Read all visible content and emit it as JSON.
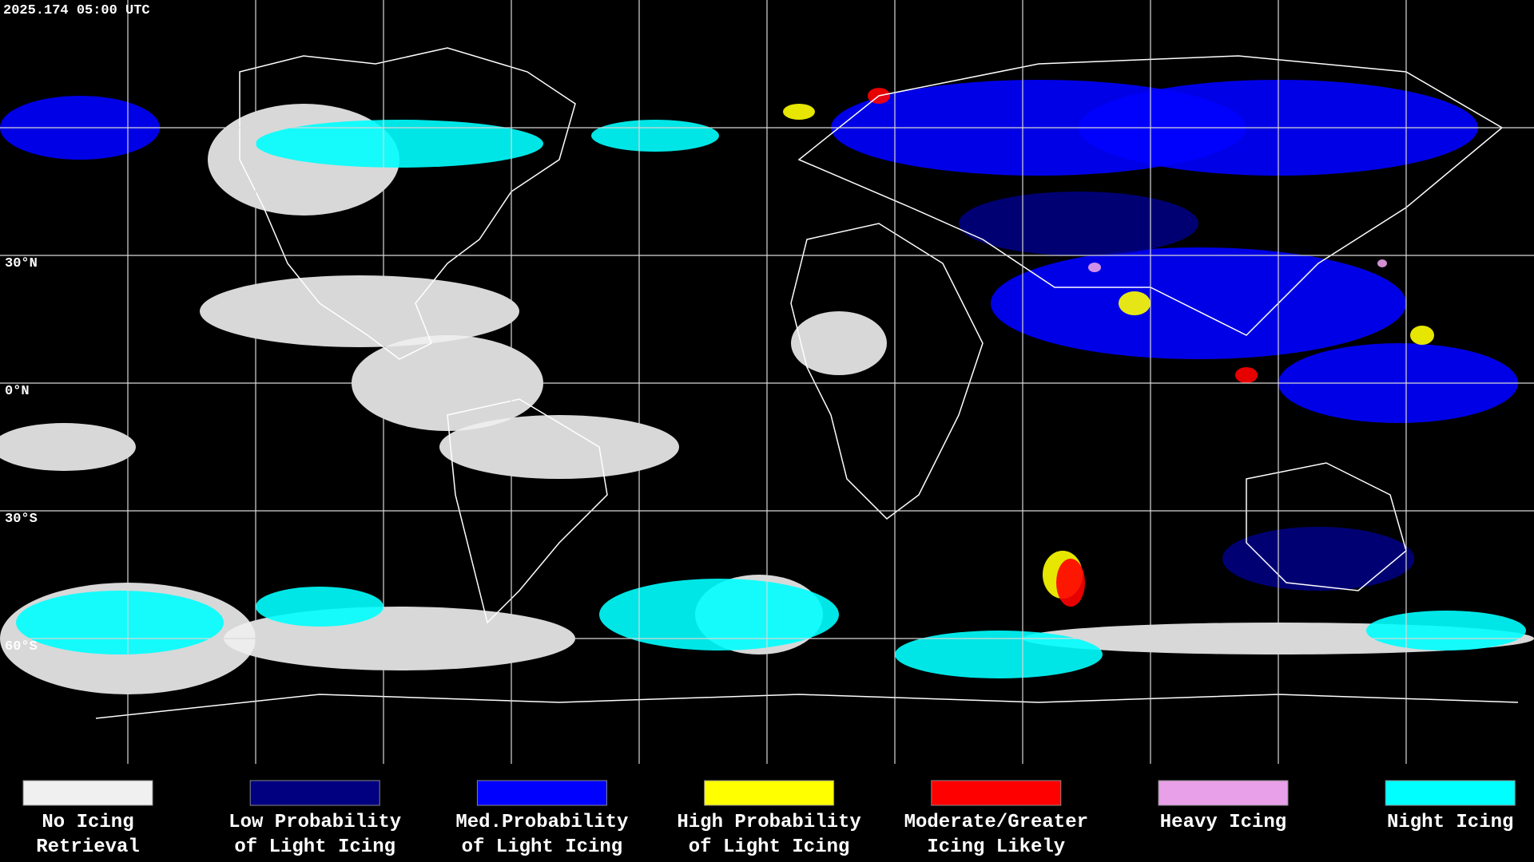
{
  "header": {
    "timestamp": "2025.174 05:00 UTC"
  },
  "map": {
    "lat_labels": [
      "30°N",
      "0°N",
      "30°S",
      "60°S"
    ]
  },
  "legend": {
    "items": [
      {
        "color": "#f0f0f0",
        "lines": [
          "No Icing",
          "Retrieval"
        ]
      },
      {
        "color": "#000080",
        "lines": [
          "Low Probability",
          "of Light Icing"
        ]
      },
      {
        "color": "#0000ff",
        "lines": [
          "Med.Probability",
          "of Light Icing"
        ]
      },
      {
        "color": "#ffff00",
        "lines": [
          "High Probability",
          "of Light Icing"
        ]
      },
      {
        "color": "#ff0000",
        "lines": [
          "Moderate/Greater",
          "Icing Likely"
        ]
      },
      {
        "color": "#e8a0e8",
        "lines": [
          "Heavy Icing"
        ]
      },
      {
        "color": "#00ffff",
        "lines": [
          "Night Icing"
        ]
      }
    ]
  }
}
